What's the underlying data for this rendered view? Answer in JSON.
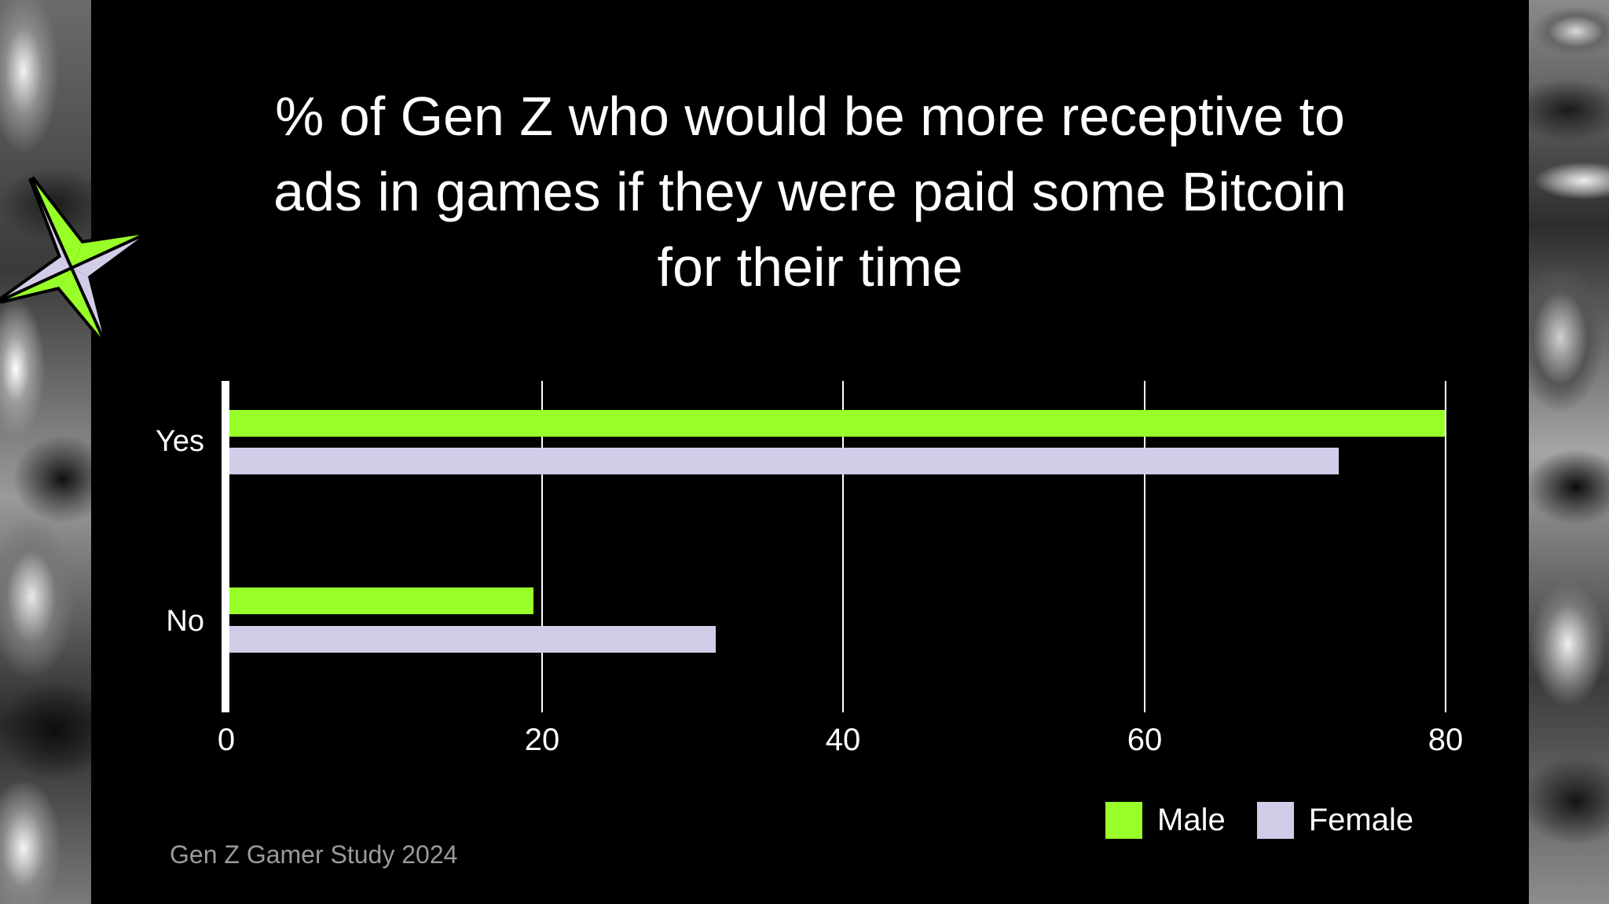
{
  "slide": {
    "title_lines": [
      "% of Gen Z who would be more receptive to",
      "ads in games if they were paid some Bitcoin",
      "for their time"
    ],
    "source": "Gen Z Gamer Study 2024",
    "colors": {
      "background": "#000000",
      "male": "#99ff29",
      "female": "#d3cce8",
      "text": "#ffffff",
      "source_text": "#9a9a9a"
    },
    "decorations": [
      "four-point-star-icon",
      "chrome-liquid-background"
    ]
  },
  "chart_data": {
    "type": "bar",
    "orientation": "horizontal",
    "title": "% of Gen Z who would be more receptive to ads in games if they were paid some Bitcoin for their time",
    "categories": [
      "Yes",
      "No"
    ],
    "series": [
      {
        "name": "Male",
        "color": "#99ff29",
        "values": [
          80,
          20
        ]
      },
      {
        "name": "Female",
        "color": "#d3cce8",
        "values": [
          73,
          32
        ]
      }
    ],
    "xlabel": "",
    "ylabel": "",
    "xlim": [
      0,
      80
    ],
    "xticks": [
      "0",
      "20",
      "40",
      "60",
      "80"
    ],
    "grid": "vertical",
    "legend_position": "bottom-right"
  },
  "legend": {
    "items": [
      {
        "label": "Male",
        "color": "#99ff29"
      },
      {
        "label": "Female",
        "color": "#d3cce8"
      }
    ]
  }
}
